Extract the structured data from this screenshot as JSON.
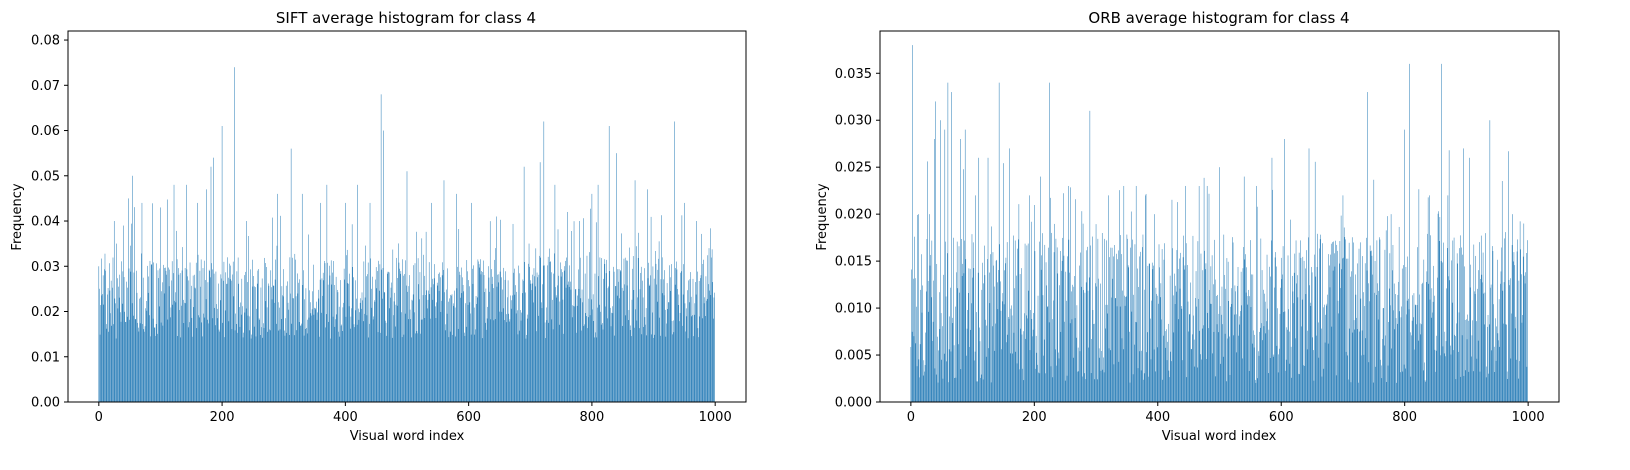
{
  "chart_data": [
    {
      "type": "bar",
      "title": "SIFT average histogram for class 4",
      "xlabel": "Visual word index",
      "ylabel": "Frequency",
      "xlim": [
        -50,
        1050
      ],
      "ylim": [
        0,
        0.082
      ],
      "xticks": [
        0,
        200,
        400,
        600,
        800,
        1000
      ],
      "yticks": [
        0.0,
        0.01,
        0.02,
        0.03,
        0.04,
        0.05,
        0.06,
        0.07,
        0.08
      ],
      "ytick_labels": [
        "0.00",
        "0.01",
        "0.02",
        "0.03",
        "0.04",
        "0.05",
        "0.06",
        "0.07",
        "0.08"
      ],
      "grid": false,
      "color": "#1f77b4",
      "n_bins": 1000,
      "peaks": [
        {
          "x": 0,
          "y": 0.03
        },
        {
          "x": 25,
          "y": 0.04
        },
        {
          "x": 40,
          "y": 0.039
        },
        {
          "x": 48,
          "y": 0.045
        },
        {
          "x": 55,
          "y": 0.05
        },
        {
          "x": 70,
          "y": 0.044
        },
        {
          "x": 100,
          "y": 0.043
        },
        {
          "x": 122,
          "y": 0.048
        },
        {
          "x": 142,
          "y": 0.048
        },
        {
          "x": 160,
          "y": 0.044
        },
        {
          "x": 175,
          "y": 0.047
        },
        {
          "x": 182,
          "y": 0.052
        },
        {
          "x": 186,
          "y": 0.054
        },
        {
          "x": 200,
          "y": 0.061
        },
        {
          "x": 220,
          "y": 0.074
        },
        {
          "x": 240,
          "y": 0.04
        },
        {
          "x": 290,
          "y": 0.046
        },
        {
          "x": 312,
          "y": 0.056
        },
        {
          "x": 330,
          "y": 0.046
        },
        {
          "x": 360,
          "y": 0.044
        },
        {
          "x": 370,
          "y": 0.048
        },
        {
          "x": 400,
          "y": 0.044
        },
        {
          "x": 420,
          "y": 0.048
        },
        {
          "x": 440,
          "y": 0.044
        },
        {
          "x": 458,
          "y": 0.068
        },
        {
          "x": 462,
          "y": 0.06
        },
        {
          "x": 500,
          "y": 0.051
        },
        {
          "x": 540,
          "y": 0.044
        },
        {
          "x": 560,
          "y": 0.049
        },
        {
          "x": 580,
          "y": 0.046
        },
        {
          "x": 605,
          "y": 0.044
        },
        {
          "x": 645,
          "y": 0.041
        },
        {
          "x": 690,
          "y": 0.052
        },
        {
          "x": 716,
          "y": 0.053
        },
        {
          "x": 722,
          "y": 0.062
        },
        {
          "x": 740,
          "y": 0.048
        },
        {
          "x": 760,
          "y": 0.042
        },
        {
          "x": 780,
          "y": 0.04
        },
        {
          "x": 800,
          "y": 0.046
        },
        {
          "x": 810,
          "y": 0.048
        },
        {
          "x": 828,
          "y": 0.061
        },
        {
          "x": 840,
          "y": 0.055
        },
        {
          "x": 870,
          "y": 0.049
        },
        {
          "x": 890,
          "y": 0.047
        },
        {
          "x": 934,
          "y": 0.062
        },
        {
          "x": 950,
          "y": 0.044
        },
        {
          "x": 970,
          "y": 0.04
        },
        {
          "x": 990,
          "y": 0.034
        }
      ]
    },
    {
      "type": "bar",
      "title": "ORB average histogram for class 4",
      "xlabel": "Visual word index",
      "ylabel": "Frequency",
      "xlim": [
        -50,
        1050
      ],
      "ylim": [
        0,
        0.0395
      ],
      "xticks": [
        0,
        200,
        400,
        600,
        800,
        1000
      ],
      "yticks": [
        0.0,
        0.005,
        0.01,
        0.015,
        0.02,
        0.025,
        0.03,
        0.035
      ],
      "ytick_labels": [
        "0.000",
        "0.005",
        "0.010",
        "0.015",
        "0.020",
        "0.025",
        "0.030",
        "0.035"
      ],
      "grid": false,
      "color": "#1f77b4",
      "n_bins": 1000,
      "peaks": [
        {
          "x": 3,
          "y": 0.038
        },
        {
          "x": 12,
          "y": 0.02
        },
        {
          "x": 30,
          "y": 0.02
        },
        {
          "x": 38,
          "y": 0.028
        },
        {
          "x": 40,
          "y": 0.032
        },
        {
          "x": 48,
          "y": 0.03
        },
        {
          "x": 55,
          "y": 0.029
        },
        {
          "x": 60,
          "y": 0.034
        },
        {
          "x": 66,
          "y": 0.033
        },
        {
          "x": 80,
          "y": 0.028
        },
        {
          "x": 88,
          "y": 0.029
        },
        {
          "x": 105,
          "y": 0.022
        },
        {
          "x": 110,
          "y": 0.026
        },
        {
          "x": 125,
          "y": 0.026
        },
        {
          "x": 143,
          "y": 0.034
        },
        {
          "x": 160,
          "y": 0.027
        },
        {
          "x": 192,
          "y": 0.022
        },
        {
          "x": 210,
          "y": 0.024
        },
        {
          "x": 225,
          "y": 0.034
        },
        {
          "x": 255,
          "y": 0.023
        },
        {
          "x": 290,
          "y": 0.031
        },
        {
          "x": 320,
          "y": 0.022
        },
        {
          "x": 345,
          "y": 0.023
        },
        {
          "x": 365,
          "y": 0.023
        },
        {
          "x": 380,
          "y": 0.022
        },
        {
          "x": 395,
          "y": 0.02
        },
        {
          "x": 445,
          "y": 0.023
        },
        {
          "x": 480,
          "y": 0.023
        },
        {
          "x": 500,
          "y": 0.025
        },
        {
          "x": 540,
          "y": 0.024
        },
        {
          "x": 560,
          "y": 0.023
        },
        {
          "x": 585,
          "y": 0.026
        },
        {
          "x": 605,
          "y": 0.028
        },
        {
          "x": 645,
          "y": 0.027
        },
        {
          "x": 700,
          "y": 0.022
        },
        {
          "x": 740,
          "y": 0.033
        },
        {
          "x": 778,
          "y": 0.02
        },
        {
          "x": 800,
          "y": 0.029
        },
        {
          "x": 808,
          "y": 0.036
        },
        {
          "x": 840,
          "y": 0.022
        },
        {
          "x": 860,
          "y": 0.036
        },
        {
          "x": 870,
          "y": 0.022
        },
        {
          "x": 895,
          "y": 0.027
        },
        {
          "x": 905,
          "y": 0.026
        },
        {
          "x": 938,
          "y": 0.03
        },
        {
          "x": 975,
          "y": 0.02
        },
        {
          "x": 993,
          "y": 0.019
        }
      ]
    }
  ]
}
